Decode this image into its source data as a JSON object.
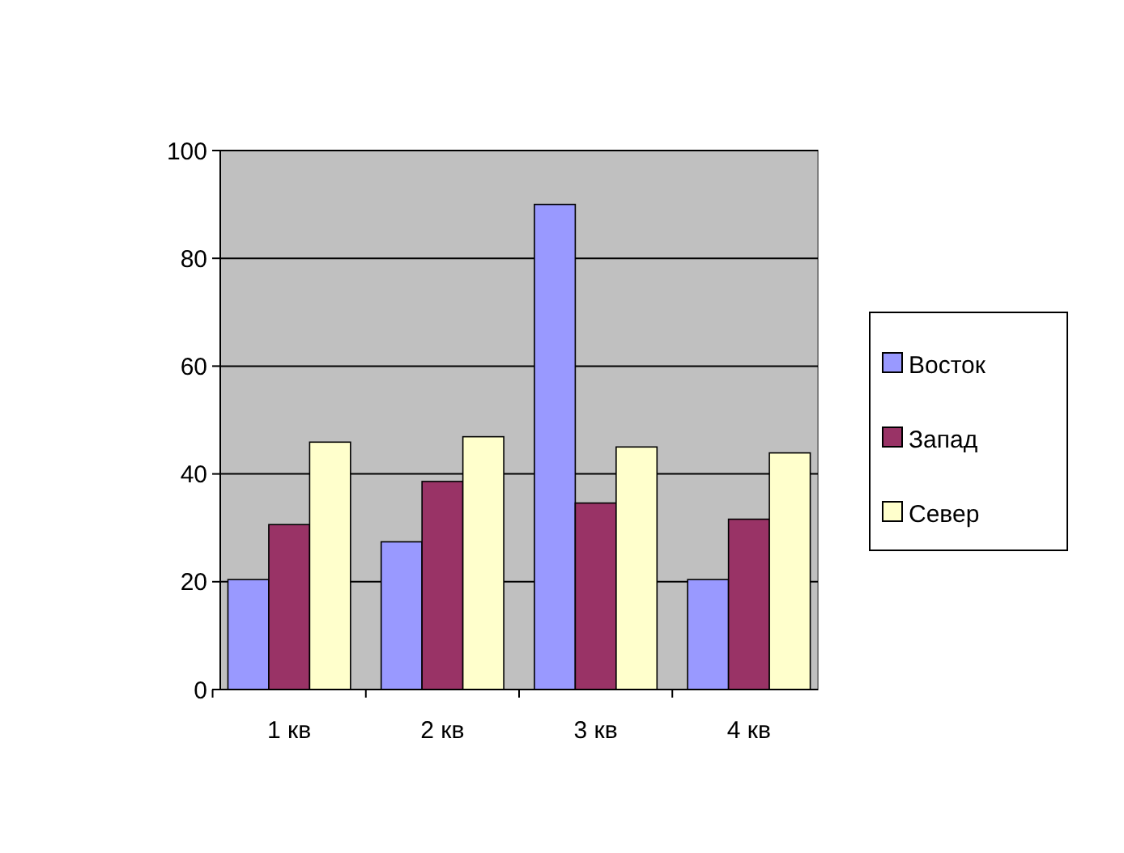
{
  "chart_data": {
    "type": "bar",
    "categories": [
      "1 кв",
      "2 кв",
      "3 кв",
      "4 кв"
    ],
    "series": [
      {
        "name": "Восток",
        "color": "#9999ff",
        "values": [
          20.4,
          27.4,
          90,
          20.4
        ]
      },
      {
        "name": "Запад",
        "color": "#993366",
        "values": [
          30.6,
          38.6,
          34.6,
          31.6
        ]
      },
      {
        "name": "Север",
        "color": "#ffffcc",
        "values": [
          45.9,
          46.9,
          45,
          43.9
        ]
      }
    ],
    "ylim": [
      0,
      100
    ],
    "yticks": [
      0,
      20,
      40,
      60,
      80,
      100
    ],
    "grid": "y",
    "legend": "right"
  }
}
